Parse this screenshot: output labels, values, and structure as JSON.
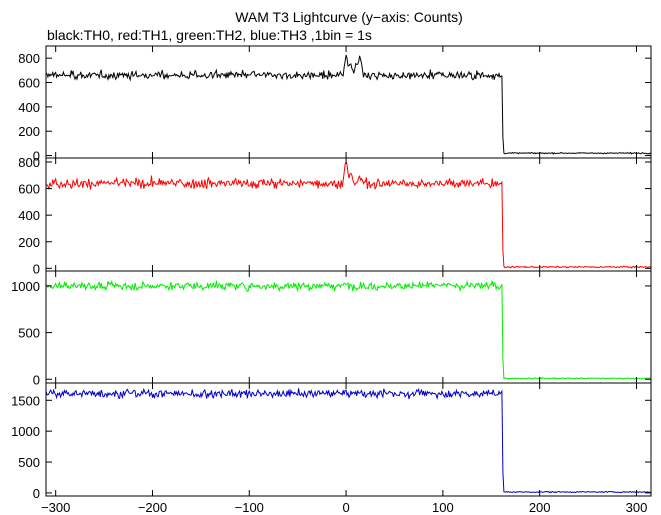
{
  "chart_data": {
    "type": "line",
    "title": "WAM T3 Lightcurve (y−axis: Counts)",
    "subtitle": "black:TH0, red:TH1, green:TH2, blue:TH3 ,1bin = 1s",
    "xlabel": "",
    "xlim": [
      -310,
      315
    ],
    "x_ticks": [
      -300,
      -200,
      -100,
      0,
      100,
      200,
      300
    ],
    "x_tick_labels": [
      "−300",
      "−200",
      "−100",
      "0",
      "100",
      "200",
      "300"
    ],
    "grid": false,
    "legend": "none",
    "drop_x": 162,
    "panels": [
      {
        "series_label": "TH0",
        "color": "#000000",
        "ylim": [
          -20,
          900
        ],
        "y_ticks": [
          0,
          200,
          400,
          600,
          800
        ],
        "y_tick_labels": [
          "0",
          "200",
          "400",
          "600",
          "800"
        ],
        "base": 660,
        "noise": 22,
        "after": 20,
        "peaks": [
          {
            "x": 0,
            "height": 150,
            "width": 2
          },
          {
            "x": 4,
            "height": 90,
            "width": 2
          },
          {
            "x": 14,
            "height": 110,
            "width": 3
          },
          {
            "x": 10,
            "height": 60,
            "width": 4
          }
        ]
      },
      {
        "series_label": "TH1",
        "color": "#ff0000",
        "ylim": [
          -20,
          830
        ],
        "y_ticks": [
          0,
          200,
          400,
          600,
          800
        ],
        "y_tick_labels": [
          "0",
          "200",
          "400",
          "600",
          "800"
        ],
        "base": 640,
        "noise": 25,
        "after": 10,
        "peaks": [
          {
            "x": 0,
            "height": 160,
            "width": 2
          },
          {
            "x": 5,
            "height": 60,
            "width": 2
          },
          {
            "x": 14,
            "height": 40,
            "width": 3
          }
        ]
      },
      {
        "series_label": "TH2",
        "color": "#00ee00",
        "ylim": [
          -40,
          1160
        ],
        "y_ticks": [
          0,
          500,
          1000
        ],
        "y_tick_labels": [
          "0",
          "500",
          "1000"
        ],
        "base": 1000,
        "noise": 30,
        "after": 10,
        "peaks": []
      },
      {
        "series_label": "TH3",
        "color": "#0000cc",
        "ylim": [
          -50,
          1780
        ],
        "y_ticks": [
          0,
          500,
          1000,
          1500
        ],
        "y_tick_labels": [
          "0",
          "500",
          "1000",
          "1500"
        ],
        "base": 1610,
        "noise": 45,
        "after": 15,
        "peaks": []
      }
    ]
  }
}
